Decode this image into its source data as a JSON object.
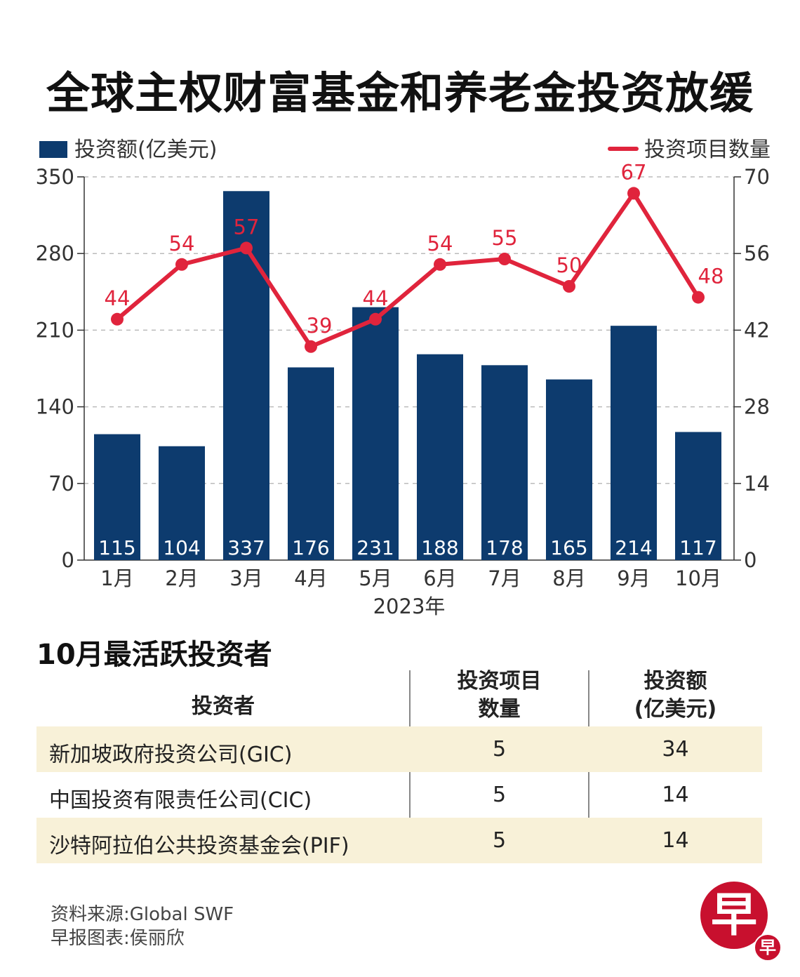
{
  "title": "全球主权财富基金和养老金投资放缓",
  "chart_data": {
    "type": "bar+line",
    "categories": [
      "1月",
      "2月",
      "3月",
      "4月",
      "5月",
      "6月",
      "7月",
      "8月",
      "9月",
      "10月"
    ],
    "xlabel": "2023年",
    "series": [
      {
        "name": "投资额(亿美元)",
        "type": "bar",
        "axis": "left",
        "color": "#0d3b6e",
        "values": [
          115,
          104,
          337,
          176,
          231,
          188,
          178,
          165,
          214,
          117
        ]
      },
      {
        "name": "投资项目数量",
        "type": "line",
        "axis": "right",
        "color": "#e0243c",
        "values": [
          44,
          54,
          57,
          39,
          44,
          54,
          55,
          50,
          67,
          48
        ]
      }
    ],
    "left_axis": {
      "ylim": [
        0,
        350
      ],
      "ticks": [
        "0",
        "70",
        "140",
        "210",
        "280",
        "350"
      ]
    },
    "right_axis": {
      "ylim": [
        0,
        70
      ],
      "ticks": [
        "0",
        "14",
        "28",
        "42",
        "56",
        "70"
      ]
    },
    "grid": "dashed horizontal",
    "legend": "top"
  },
  "table": {
    "title": "10月最活跃投资者",
    "headers": [
      "投资者",
      "投资项目\n数量",
      "投资额\n(亿美元)"
    ],
    "header_lines": [
      [
        "投资者"
      ],
      [
        "投资项目",
        "数量"
      ],
      [
        "投资额",
        "(亿美元)"
      ]
    ],
    "rows": [
      [
        "新加坡政府投资公司(GIC)",
        "5",
        "34"
      ],
      [
        "中国投资有限责任公司(CIC)",
        "5",
        "14"
      ],
      [
        "沙特阿拉伯公共投资基金会(PIF)",
        "5",
        "14"
      ]
    ],
    "stripe_color": "#f8f1d8"
  },
  "source": "资料来源:Global SWF",
  "credit": "早报图表:侯丽欣",
  "logo": {
    "text": "早",
    "color": "#c8102e"
  }
}
